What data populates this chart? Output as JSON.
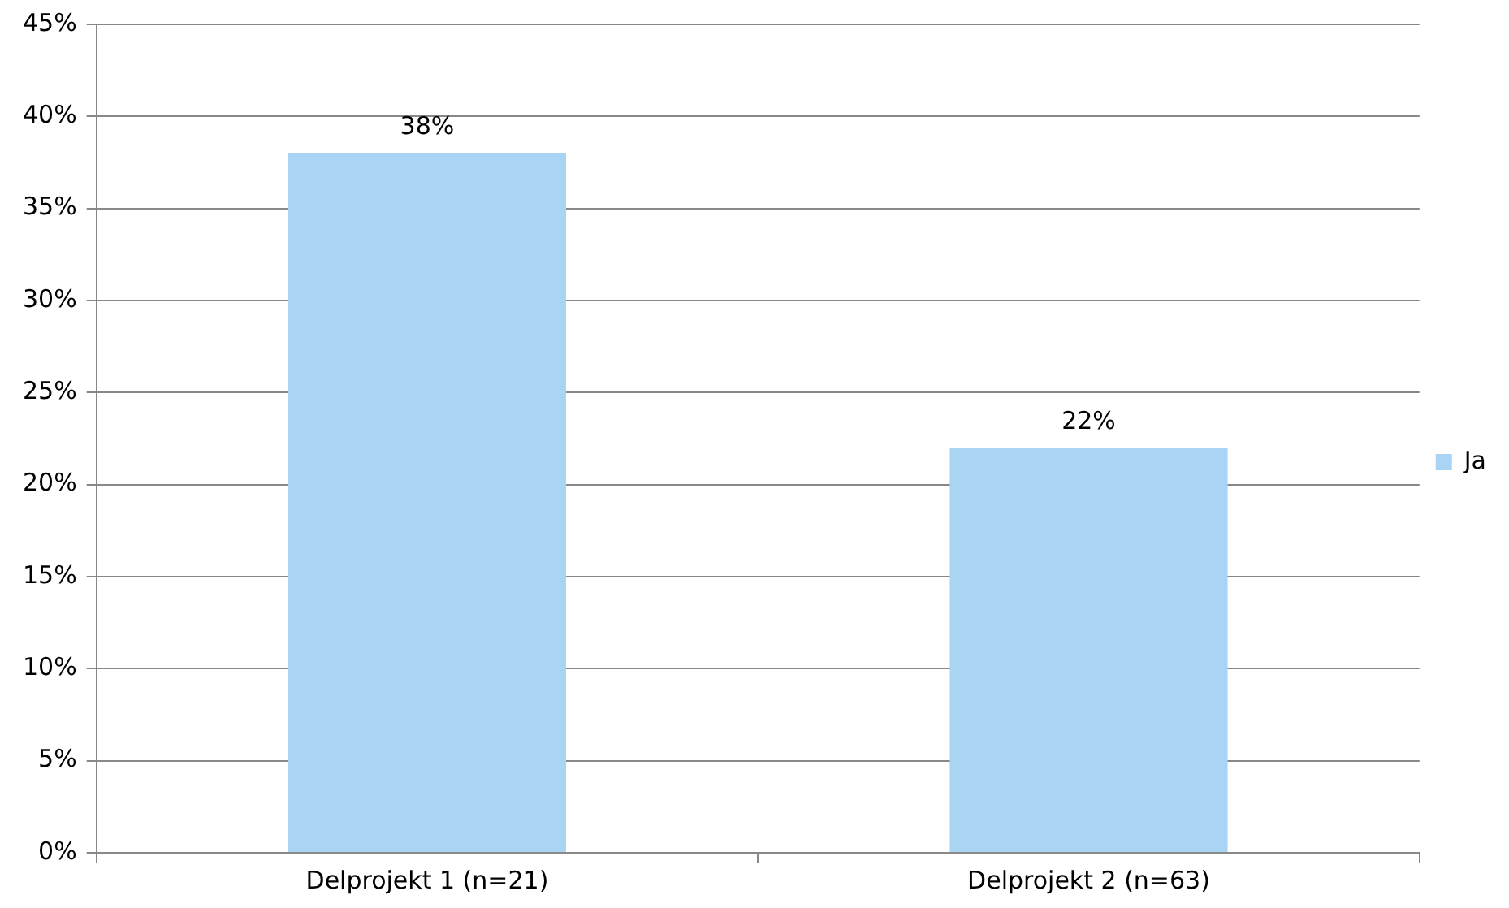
{
  "chart_data": {
    "type": "bar",
    "categories": [
      "Delprojekt 1 (n=21)",
      "Delprojekt 2 (n=63)"
    ],
    "series": [
      {
        "name": "Ja",
        "color": "#a9d4f4",
        "values": [
          38,
          22
        ]
      }
    ],
    "value_labels": [
      "38%",
      "22%"
    ],
    "ylim": [
      0,
      45
    ],
    "yticks": [
      {
        "value": 0,
        "label": "0%"
      },
      {
        "value": 5,
        "label": "5%"
      },
      {
        "value": 10,
        "label": "10%"
      },
      {
        "value": 15,
        "label": "15%"
      },
      {
        "value": 20,
        "label": "20%"
      },
      {
        "value": 25,
        "label": "25%"
      },
      {
        "value": 30,
        "label": "30%"
      },
      {
        "value": 35,
        "label": "35%"
      },
      {
        "value": 40,
        "label": "40%"
      },
      {
        "value": 45,
        "label": "45%"
      }
    ],
    "grid": "y",
    "legend": "right"
  }
}
